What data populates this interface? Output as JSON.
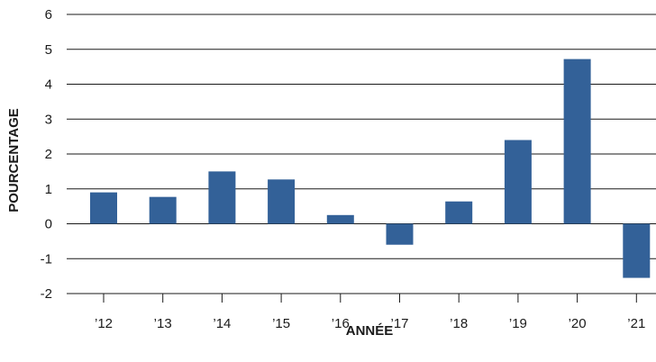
{
  "chart_data": {
    "type": "bar",
    "title": "",
    "xlabel": "ANNÉE",
    "ylabel": "POURCENTAGE",
    "categories": [
      "’12",
      "’13",
      "’14",
      "’15",
      "’16",
      "’17",
      "’18",
      "’19",
      "’20",
      "’21"
    ],
    "values": [
      0.9,
      0.77,
      1.5,
      1.27,
      0.25,
      -0.6,
      0.64,
      2.4,
      4.72,
      -1.55
    ],
    "ylim": [
      -2,
      6
    ],
    "yticks": [
      6,
      5,
      4,
      3,
      2,
      1,
      0,
      -1,
      -2
    ],
    "grid": true,
    "legend": "none",
    "colors": {
      "bar": "#336198",
      "grid": "#1a1a1a",
      "text": "#1a1a1a"
    }
  }
}
